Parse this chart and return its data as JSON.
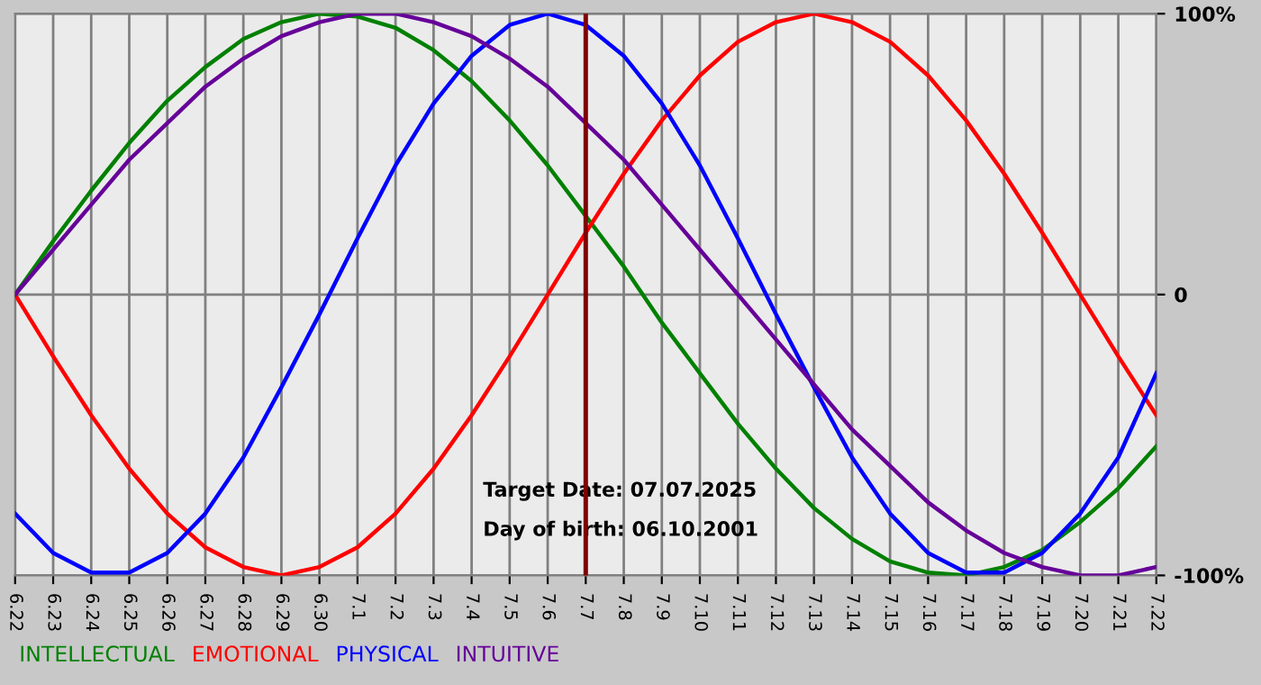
{
  "chart_data": {
    "type": "line",
    "categories": [
      "6.22",
      "6.23",
      "6.24",
      "6.25",
      "6.26",
      "6.27",
      "6.28",
      "6.29",
      "6.30",
      "7.1",
      "7.2",
      "7.3",
      "7.4",
      "7.5",
      "7.6",
      "7.7",
      "7.8",
      "7.9",
      "7.10",
      "7.11",
      "7.12",
      "7.13",
      "7.14",
      "7.15",
      "7.16",
      "7.17",
      "7.18",
      "7.19",
      "7.20",
      "7.21",
      "7.22"
    ],
    "series": [
      {
        "name": "INTELLECTUAL",
        "color": "#008000",
        "values": [
          0,
          19,
          37,
          54,
          69,
          81,
          91,
          97,
          100,
          99,
          95,
          87,
          76,
          62,
          46,
          28,
          10,
          -10,
          -28,
          -46,
          -62,
          -76,
          -87,
          -95,
          -99,
          -100,
          -97,
          -91,
          -81,
          -69,
          -54
        ]
      },
      {
        "name": "EMOTIONAL",
        "color": "#ff0000",
        "values": [
          0,
          -22,
          -43,
          -62,
          -78,
          -90,
          -97,
          -100,
          -97,
          -90,
          -78,
          -62,
          -43,
          -22,
          0,
          22,
          43,
          62,
          78,
          90,
          97,
          100,
          97,
          90,
          78,
          62,
          43,
          22,
          0,
          -22,
          -43
        ]
      },
      {
        "name": "PHYSICAL",
        "color": "#0000ff",
        "values": [
          -78,
          -92,
          -99,
          -99,
          -92,
          -78,
          -58,
          -33,
          -7,
          20,
          46,
          68,
          85,
          96,
          100,
          96,
          85,
          68,
          46,
          20,
          -7,
          -33,
          -58,
          -78,
          -92,
          -99,
          -99,
          -92,
          -78,
          -58,
          -28
        ]
      },
      {
        "name": "INTUITIVE",
        "color": "#660099",
        "values": [
          0,
          16,
          32,
          48,
          61,
          74,
          84,
          92,
          97,
          100,
          100,
          97,
          92,
          84,
          74,
          61,
          48,
          32,
          16,
          0,
          -16,
          -32,
          -48,
          -61,
          -74,
          -84,
          -92,
          -97,
          -100,
          -100,
          -97
        ]
      }
    ],
    "ylim": [
      -100,
      100
    ],
    "yticks": [
      {
        "value": -100,
        "label": "-100%"
      },
      0,
      {
        "value": 100,
        "label": "100%"
      }
    ],
    "ref_lines": [
      {
        "axis": "x",
        "value": "7.7",
        "color": "#800000"
      }
    ],
    "annotations": [
      "Target Date: 07.07.2025",
      "Day of birth: 06.10.2001"
    ],
    "grid": true,
    "legend": "bottom",
    "marker": "none",
    "line_style": "solid"
  }
}
